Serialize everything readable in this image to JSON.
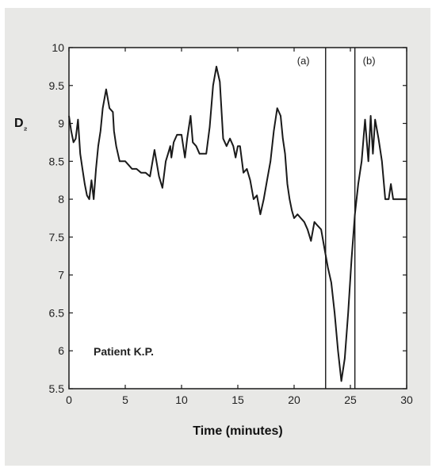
{
  "chart_data": {
    "type": "line",
    "xlabel": "Time (minutes)",
    "ylabel": "D₂",
    "xlim": [
      0,
      30
    ],
    "ylim": [
      5.5,
      10
    ],
    "xticks": [
      "0",
      "5",
      "10",
      "15",
      "20",
      "25",
      "30"
    ],
    "yticks": [
      "5.5",
      "6",
      "6.5",
      "7",
      "7.5",
      "8",
      "8.5",
      "9",
      "9.5",
      "10"
    ],
    "grid": false,
    "annotation": "Patient K.P.",
    "region_labels": [
      "(a)",
      "(b)"
    ],
    "region_markers_x": [
      22.8,
      25.4
    ],
    "line_color": "#1a1a1a",
    "series": [
      {
        "x": [
          0,
          0.2,
          0.4,
          0.6,
          0.8,
          1.0,
          1.2,
          1.4,
          1.6,
          1.8,
          2.0,
          2.2,
          2.4,
          2.6,
          2.8,
          3.0,
          3.3,
          3.6,
          3.9,
          4.0,
          4.2,
          4.5,
          4.8,
          5.0,
          5.3,
          5.6,
          6.0,
          6.4,
          6.8,
          7.2,
          7.6,
          8.0,
          8.3,
          8.6,
          8.8,
          9.0,
          9.1,
          9.3,
          9.6,
          10.0,
          10.3,
          10.5,
          10.8,
          11.0,
          11.3,
          11.6,
          11.9,
          12.2,
          12.5,
          12.8,
          13.1,
          13.4,
          13.7,
          14.0,
          14.3,
          14.6,
          14.8,
          15.0,
          15.2,
          15.5,
          15.8,
          16.1,
          16.4,
          16.7,
          17.0,
          17.3,
          17.6,
          17.9,
          18.2,
          18.5,
          18.8,
          19.0,
          19.2,
          19.4,
          19.6,
          19.8,
          20.0,
          20.3,
          20.6,
          20.9,
          21.2,
          21.5,
          21.8,
          22.1,
          22.4,
          22.7,
          23.0,
          23.3,
          23.6,
          23.9,
          24.2,
          24.5,
          24.8,
          25.1,
          25.4,
          25.7,
          26.0,
          26.3,
          26.6,
          26.8,
          27.0,
          27.2,
          27.5,
          27.8,
          28.1,
          28.4,
          28.6,
          28.8,
          29.0,
          29.2,
          29.4,
          29.6,
          29.8,
          30.0
        ],
        "y": [
          9.1,
          8.9,
          8.75,
          8.8,
          9.05,
          8.6,
          8.4,
          8.2,
          8.05,
          8.0,
          8.25,
          8.0,
          8.4,
          8.7,
          8.9,
          9.2,
          9.45,
          9.2,
          9.15,
          8.9,
          8.7,
          8.5,
          8.5,
          8.5,
          8.45,
          8.4,
          8.4,
          8.35,
          8.35,
          8.3,
          8.65,
          8.3,
          8.15,
          8.5,
          8.6,
          8.7,
          8.55,
          8.75,
          8.85,
          8.85,
          8.55,
          8.8,
          9.1,
          8.75,
          8.7,
          8.6,
          8.6,
          8.6,
          8.95,
          9.5,
          9.75,
          9.55,
          8.8,
          8.7,
          8.8,
          8.7,
          8.55,
          8.7,
          8.7,
          8.35,
          8.4,
          8.25,
          8.0,
          8.05,
          7.8,
          8.0,
          8.25,
          8.5,
          8.9,
          9.2,
          9.1,
          8.8,
          8.6,
          8.2,
          8.0,
          7.85,
          7.75,
          7.8,
          7.75,
          7.7,
          7.6,
          7.45,
          7.7,
          7.65,
          7.6,
          7.35,
          7.1,
          6.9,
          6.5,
          6.0,
          5.6,
          5.9,
          6.5,
          7.2,
          7.8,
          8.2,
          8.5,
          9.05,
          8.5,
          9.1,
          8.6,
          9.05,
          8.8,
          8.5,
          8.0,
          8.0,
          8.2,
          8.0,
          8.0,
          8.0,
          8.0,
          8.0,
          8.0,
          8.0
        ]
      }
    ]
  }
}
